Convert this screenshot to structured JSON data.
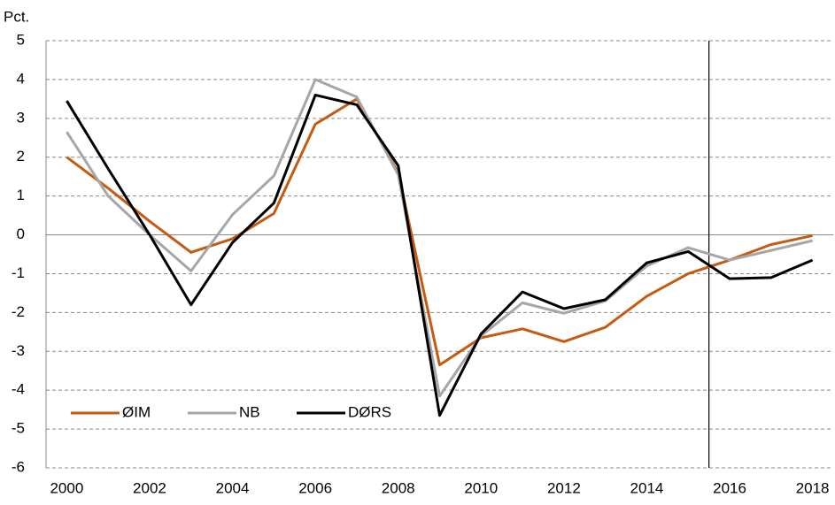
{
  "chart_data": {
    "type": "line",
    "ylabel": "Pct.",
    "x": [
      2000,
      2001,
      2002,
      2003,
      2004,
      2005,
      2006,
      2007,
      2008,
      2009,
      2010,
      2011,
      2012,
      2013,
      2014,
      2015,
      2016,
      2017,
      2018
    ],
    "xlim": [
      1999.5,
      2018.5
    ],
    "xticks": [
      2000,
      2002,
      2004,
      2006,
      2008,
      2010,
      2012,
      2014,
      2016,
      2018
    ],
    "ylim": [
      -6,
      5
    ],
    "yticks": [
      -6,
      -5,
      -4,
      -3,
      -2,
      -1,
      0,
      1,
      2,
      3,
      4,
      5
    ],
    "grid": true,
    "vline": 2015.5,
    "legend": "lower left",
    "series": [
      {
        "name": "ØIM",
        "color": "#c55a11",
        "values": [
          2.0,
          1.2,
          0.35,
          -0.45,
          -0.1,
          0.55,
          2.85,
          3.5,
          1.6,
          -3.35,
          -2.65,
          -2.42,
          -2.75,
          -2.38,
          -1.58,
          -1.0,
          -0.65,
          -0.25,
          -0.02
        ]
      },
      {
        "name": "NB",
        "color": "#a6a6a6",
        "values": [
          2.65,
          1.0,
          0.0,
          -0.93,
          0.52,
          1.52,
          4.0,
          3.55,
          1.55,
          -4.15,
          -2.6,
          -1.75,
          -2.02,
          -1.7,
          -0.8,
          -0.33,
          -0.65,
          -0.4,
          -0.15
        ]
      },
      {
        "name": "DØRS",
        "color": "#000000",
        "values": [
          3.45,
          1.7,
          0.0,
          -1.8,
          -0.2,
          0.82,
          3.6,
          3.35,
          1.78,
          -4.65,
          -2.55,
          -1.47,
          -1.9,
          -1.67,
          -0.72,
          -0.43,
          -1.13,
          -1.1,
          -0.65
        ]
      }
    ]
  }
}
